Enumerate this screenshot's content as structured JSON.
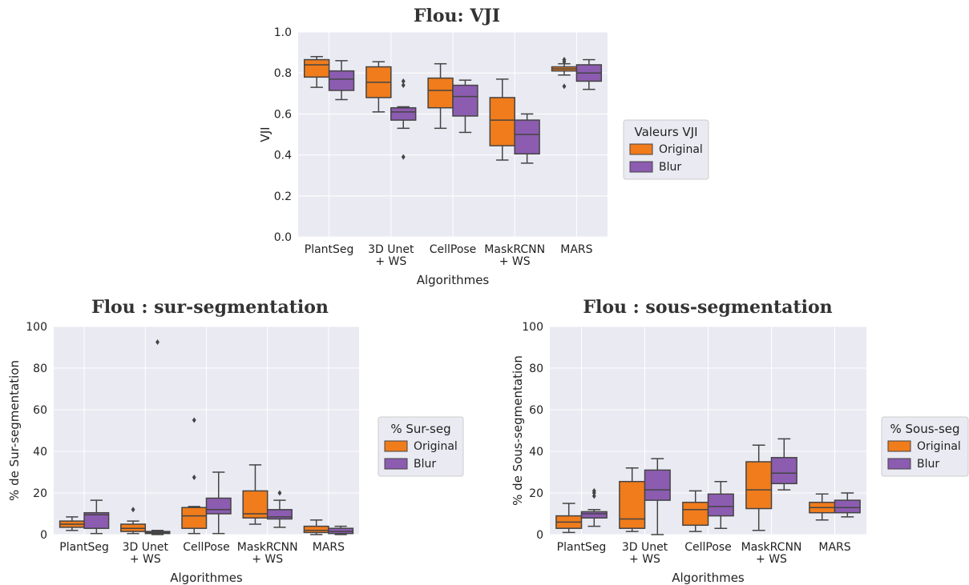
{
  "colors": {
    "original": "#f07c1b",
    "blur": "#8c5cb0",
    "panel_bg": "#eaeaf2",
    "grid": "#ffffff",
    "line": "#444444"
  },
  "chart_data": [
    {
      "type": "box",
      "title": "Flou: VJI",
      "xlabel": "Algorithmes",
      "ylabel": "VJI",
      "ylim": [
        0,
        1.0
      ],
      "yticks": [
        "0.0",
        "0.2",
        "0.4",
        "0.6",
        "0.8",
        "1.0"
      ],
      "ytick_values": [
        0,
        0.2,
        0.4,
        0.6,
        0.8,
        1.0
      ],
      "categories": [
        [
          "PlantSeg"
        ],
        [
          "3D Unet",
          "+ WS"
        ],
        [
          "CellPose"
        ],
        [
          "MaskRCNN",
          "+ WS"
        ],
        [
          "MARS"
        ]
      ],
      "legend": {
        "title": "Valeurs VJI",
        "position": "right"
      },
      "series": [
        {
          "name": "Original",
          "color_key": "original",
          "boxes": [
            {
              "q1": 0.78,
              "median": 0.84,
              "q3": 0.865,
              "whislo": 0.73,
              "whishi": 0.88,
              "fliers": []
            },
            {
              "q1": 0.68,
              "median": 0.755,
              "q3": 0.83,
              "whislo": 0.61,
              "whishi": 0.855,
              "fliers": []
            },
            {
              "q1": 0.63,
              "median": 0.715,
              "q3": 0.775,
              "whislo": 0.53,
              "whishi": 0.845,
              "fliers": []
            },
            {
              "q1": 0.445,
              "median": 0.57,
              "q3": 0.68,
              "whislo": 0.375,
              "whishi": 0.77,
              "fliers": []
            },
            {
              "q1": 0.81,
              "median": 0.82,
              "q3": 0.83,
              "whislo": 0.79,
              "whishi": 0.845,
              "fliers": [
                0.735,
                0.865,
                0.855
              ]
            }
          ]
        },
        {
          "name": "Blur",
          "color_key": "blur",
          "boxes": [
            {
              "q1": 0.715,
              "median": 0.77,
              "q3": 0.81,
              "whislo": 0.67,
              "whishi": 0.86,
              "fliers": []
            },
            {
              "q1": 0.57,
              "median": 0.61,
              "q3": 0.63,
              "whislo": 0.53,
              "whishi": 0.635,
              "fliers": [
                0.39,
                0.74,
                0.76
              ]
            },
            {
              "q1": 0.59,
              "median": 0.685,
              "q3": 0.74,
              "whislo": 0.51,
              "whishi": 0.765,
              "fliers": []
            },
            {
              "q1": 0.405,
              "median": 0.5,
              "q3": 0.57,
              "whislo": 0.36,
              "whishi": 0.6,
              "fliers": []
            },
            {
              "q1": 0.76,
              "median": 0.8,
              "q3": 0.84,
              "whislo": 0.72,
              "whishi": 0.865,
              "fliers": []
            }
          ]
        }
      ]
    },
    {
      "type": "box",
      "title": "Flou : sur-segmentation",
      "xlabel": "Algorithmes",
      "ylabel": "% de Sur-segmentation",
      "ylim": [
        0,
        100
      ],
      "yticks": [
        "0",
        "20",
        "40",
        "60",
        "80",
        "100"
      ],
      "ytick_values": [
        0,
        20,
        40,
        60,
        80,
        100
      ],
      "categories": [
        [
          "PlantSeg"
        ],
        [
          "3D Unet",
          "+ WS"
        ],
        [
          "CellPose"
        ],
        [
          "MaskRCNN",
          "+ WS"
        ],
        [
          "MARS"
        ]
      ],
      "legend": {
        "title": "% Sur-seg",
        "position": "right"
      },
      "series": [
        {
          "name": "Original",
          "color_key": "original",
          "boxes": [
            {
              "q1": 3.5,
              "median": 5,
              "q3": 6.5,
              "whislo": 2,
              "whishi": 8.5,
              "fliers": []
            },
            {
              "q1": 1.5,
              "median": 3,
              "q3": 5,
              "whislo": 0.5,
              "whishi": 6.5,
              "fliers": [
                12
              ]
            },
            {
              "q1": 3,
              "median": 9,
              "q3": 13,
              "whislo": 0.5,
              "whishi": 13.5,
              "fliers": [
                27.5,
                55
              ]
            },
            {
              "q1": 8,
              "median": 10,
              "q3": 21,
              "whislo": 5,
              "whishi": 33.5,
              "fliers": []
            },
            {
              "q1": 1,
              "median": 2,
              "q3": 4,
              "whislo": 0,
              "whishi": 7,
              "fliers": []
            }
          ]
        },
        {
          "name": "Blur",
          "color_key": "blur",
          "boxes": [
            {
              "q1": 3,
              "median": 9.5,
              "q3": 10.5,
              "whislo": 0.5,
              "whishi": 16.5,
              "fliers": []
            },
            {
              "q1": 0.5,
              "median": 1,
              "q3": 1.5,
              "whislo": 0,
              "whishi": 2,
              "fliers": [
                92.5
              ]
            },
            {
              "q1": 10,
              "median": 12,
              "q3": 17.5,
              "whislo": 0.5,
              "whishi": 30,
              "fliers": []
            },
            {
              "q1": 7.5,
              "median": 8.5,
              "q3": 12,
              "whislo": 3.5,
              "whishi": 16.5,
              "fliers": [
                20
              ]
            },
            {
              "q1": 0.5,
              "median": 1.5,
              "q3": 3,
              "whislo": 0,
              "whishi": 4,
              "fliers": []
            }
          ]
        }
      ]
    },
    {
      "type": "box",
      "title": "Flou : sous-segmentation",
      "xlabel": "Algorithmes",
      "ylabel": "% de Sous-segmentation",
      "ylim": [
        0,
        100
      ],
      "yticks": [
        "0",
        "20",
        "40",
        "60",
        "80",
        "100"
      ],
      "ytick_values": [
        0,
        20,
        40,
        60,
        80,
        100
      ],
      "categories": [
        [
          "PlantSeg"
        ],
        [
          "3D Unet",
          "+ WS"
        ],
        [
          "CellPose"
        ],
        [
          "MaskRCNN",
          "+ WS"
        ],
        [
          "MARS"
        ]
      ],
      "legend": {
        "title": "% Sous-seg",
        "position": "right"
      },
      "series": [
        {
          "name": "Original",
          "color_key": "original",
          "boxes": [
            {
              "q1": 3,
              "median": 6,
              "q3": 9,
              "whislo": 1,
              "whishi": 15,
              "fliers": []
            },
            {
              "q1": 3,
              "median": 7.5,
              "q3": 25.5,
              "whislo": 1.5,
              "whishi": 32,
              "fliers": []
            },
            {
              "q1": 4.5,
              "median": 12,
              "q3": 15.5,
              "whislo": 1.5,
              "whishi": 21,
              "fliers": []
            },
            {
              "q1": 12.5,
              "median": 21.5,
              "q3": 35,
              "whislo": 2,
              "whishi": 43,
              "fliers": []
            },
            {
              "q1": 10.5,
              "median": 13,
              "q3": 15.5,
              "whislo": 7,
              "whishi": 19.5,
              "fliers": []
            }
          ]
        },
        {
          "name": "Blur",
          "color_key": "blur",
          "boxes": [
            {
              "q1": 8,
              "median": 10,
              "q3": 11,
              "whislo": 4,
              "whishi": 12,
              "fliers": [
                18.5,
                20,
                21
              ]
            },
            {
              "q1": 16.5,
              "median": 21.5,
              "q3": 31,
              "whislo": 0,
              "whishi": 36.5,
              "fliers": []
            },
            {
              "q1": 9,
              "median": 13.5,
              "q3": 19.5,
              "whislo": 3,
              "whishi": 25.5,
              "fliers": []
            },
            {
              "q1": 24.5,
              "median": 29.5,
              "q3": 37,
              "whislo": 21.5,
              "whishi": 46,
              "fliers": []
            },
            {
              "q1": 10.5,
              "median": 13,
              "q3": 16.5,
              "whislo": 8.5,
              "whishi": 20,
              "fliers": []
            }
          ]
        }
      ]
    }
  ]
}
